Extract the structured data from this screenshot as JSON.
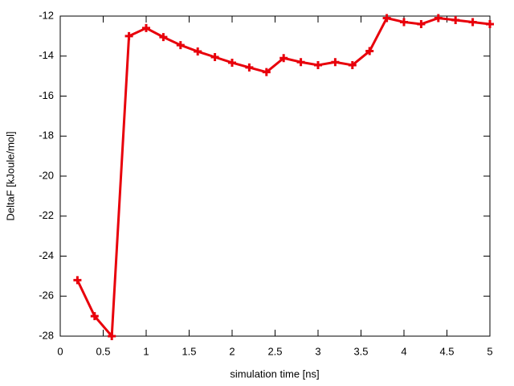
{
  "chart_data": {
    "type": "line",
    "x_label": "simulation time [ns]",
    "y_label": "DeltaF [kJoule/mol]",
    "x": [
      0.2,
      0.4,
      0.6,
      0.8,
      1.0,
      1.2,
      1.4,
      1.6,
      1.8,
      2.0,
      2.2,
      2.4,
      2.6,
      2.8,
      3.0,
      3.2,
      3.4,
      3.6,
      3.8,
      4.0,
      4.2,
      4.4,
      4.6,
      4.8,
      5.0
    ],
    "series": [
      {
        "color": "#e8000b",
        "values": [
          -25.2,
          -27.0,
          -28.0,
          -13.0,
          -12.6,
          -13.05,
          -13.45,
          -13.77,
          -14.05,
          -14.33,
          -14.57,
          -14.8,
          -14.1,
          -14.3,
          -14.45,
          -14.3,
          -14.45,
          -13.75,
          -12.1,
          -12.3,
          -12.4,
          -12.1,
          -12.2,
          -12.3,
          -12.4
        ]
      }
    ],
    "xlim": [
      0,
      5
    ],
    "xticks": [
      0,
      0.5,
      1,
      1.5,
      2,
      2.5,
      3,
      3.5,
      4,
      4.5,
      5
    ],
    "ylim": [
      -28,
      -12
    ],
    "yticks": [
      -28,
      -26,
      -24,
      -22,
      -20,
      -18,
      -16,
      -14,
      -12
    ]
  }
}
